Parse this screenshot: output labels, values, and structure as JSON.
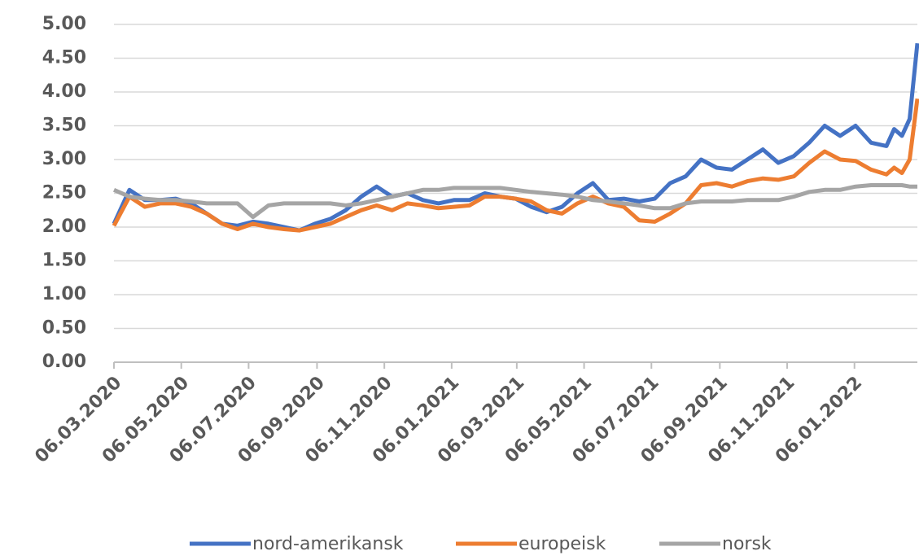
{
  "chart_data": {
    "type": "line",
    "x": [
      "06.03.2020",
      "20.03.2020",
      "03.04.2020",
      "17.04.2020",
      "01.05.2020",
      "15.05.2020",
      "29.05.2020",
      "12.06.2020",
      "26.06.2020",
      "10.07.2020",
      "24.07.2020",
      "07.08.2020",
      "21.08.2020",
      "04.09.2020",
      "18.09.2020",
      "02.10.2020",
      "16.10.2020",
      "30.10.2020",
      "13.11.2020",
      "27.11.2020",
      "11.12.2020",
      "25.12.2020",
      "08.01.2021",
      "22.01.2021",
      "05.02.2021",
      "19.02.2021",
      "05.03.2021",
      "19.03.2021",
      "02.04.2021",
      "16.04.2021",
      "30.04.2021",
      "14.05.2021",
      "28.05.2021",
      "11.06.2021",
      "25.06.2021",
      "09.07.2021",
      "23.07.2021",
      "06.08.2021",
      "20.08.2021",
      "03.09.2021",
      "17.09.2021",
      "01.10.2021",
      "15.10.2021",
      "29.10.2021",
      "12.11.2021",
      "26.11.2021",
      "10.12.2021",
      "24.12.2021",
      "07.01.2022",
      "21.01.2022",
      "04.02.2022",
      "11.02.2022",
      "18.02.2022",
      "25.02.2022",
      "04.03.2022"
    ],
    "series": [
      {
        "name": "nord-amerikansk",
        "color": "#4472c4",
        "values": [
          2.05,
          2.55,
          2.4,
          2.4,
          2.42,
          2.35,
          2.2,
          2.05,
          2.02,
          2.08,
          2.05,
          2.0,
          1.95,
          2.05,
          2.12,
          2.25,
          2.45,
          2.6,
          2.45,
          2.5,
          2.4,
          2.35,
          2.4,
          2.4,
          2.5,
          2.45,
          2.42,
          2.3,
          2.22,
          2.3,
          2.5,
          2.65,
          2.4,
          2.42,
          2.38,
          2.42,
          2.65,
          2.75,
          3.0,
          2.88,
          2.85,
          3.0,
          3.15,
          2.95,
          3.05,
          3.25,
          3.5,
          3.35,
          3.5,
          3.25,
          3.2,
          3.45,
          3.35,
          3.6,
          4.72
        ]
      },
      {
        "name": "europeisk",
        "color": "#ed7d31",
        "values": [
          2.02,
          2.45,
          2.3,
          2.35,
          2.35,
          2.3,
          2.2,
          2.05,
          1.97,
          2.05,
          2.0,
          1.97,
          1.95,
          2.0,
          2.05,
          2.15,
          2.25,
          2.32,
          2.25,
          2.35,
          2.32,
          2.28,
          2.3,
          2.32,
          2.45,
          2.45,
          2.42,
          2.38,
          2.25,
          2.2,
          2.35,
          2.45,
          2.35,
          2.3,
          2.1,
          2.08,
          2.2,
          2.35,
          2.62,
          2.65,
          2.6,
          2.68,
          2.72,
          2.7,
          2.75,
          2.95,
          3.12,
          3.0,
          2.98,
          2.85,
          2.78,
          2.88,
          2.8,
          3.0,
          3.9
        ]
      },
      {
        "name": "norsk",
        "color": "#a5a5a5",
        "values": [
          2.55,
          2.45,
          2.42,
          2.4,
          2.4,
          2.38,
          2.35,
          2.35,
          2.35,
          2.15,
          2.32,
          2.35,
          2.35,
          2.35,
          2.35,
          2.32,
          2.35,
          2.4,
          2.45,
          2.5,
          2.55,
          2.55,
          2.58,
          2.58,
          2.58,
          2.58,
          2.55,
          2.52,
          2.5,
          2.48,
          2.45,
          2.4,
          2.38,
          2.35,
          2.32,
          2.28,
          2.28,
          2.35,
          2.38,
          2.38,
          2.38,
          2.4,
          2.4,
          2.4,
          2.45,
          2.52,
          2.55,
          2.55,
          2.6,
          2.62,
          2.62,
          2.62,
          2.62,
          2.6,
          2.6
        ]
      }
    ],
    "xlim": [
      "06.03.2020",
      "04.03.2022"
    ],
    "xticks": [
      "06.03.2020",
      "06.05.2020",
      "06.07.2020",
      "06.09.2020",
      "06.11.2020",
      "06.01.2021",
      "06.03.2021",
      "06.05.2021",
      "06.07.2021",
      "06.09.2021",
      "06.11.2021",
      "06.01.2022"
    ],
    "ylim": [
      0,
      5
    ],
    "yticks": [
      {
        "value": 0,
        "label": "0.00"
      },
      {
        "value": 0.5,
        "label": "0.50"
      },
      {
        "value": 1,
        "label": "1.00"
      },
      {
        "value": 1.5,
        "label": "1.50"
      },
      {
        "value": 2,
        "label": "2.00"
      },
      {
        "value": 2.5,
        "label": "2.50"
      },
      {
        "value": 3,
        "label": "3.00"
      },
      {
        "value": 3.5,
        "label": "3.50"
      },
      {
        "value": 4,
        "label": "4.00"
      },
      {
        "value": 4.5,
        "label": "4.50"
      },
      {
        "value": 5,
        "label": "5.00"
      }
    ],
    "grid": true,
    "legend": "bottom"
  }
}
